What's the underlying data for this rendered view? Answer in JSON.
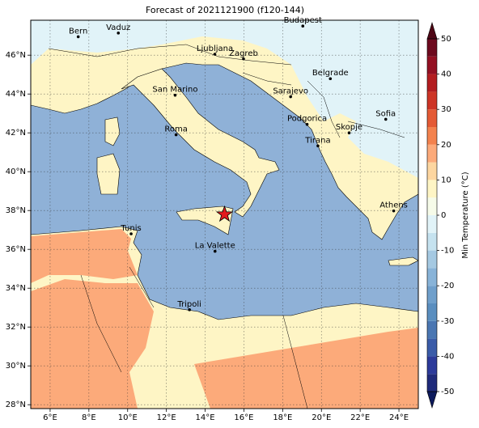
{
  "title": "Forecast of 2021121900 (f120-144)",
  "map": {
    "xlim": [
      5,
      25
    ],
    "ylim": [
      27.8,
      47.8
    ],
    "grid": true,
    "xticks": [
      {
        "value": 6,
        "label": "6°E"
      },
      {
        "value": 8,
        "label": "8°E"
      },
      {
        "value": 10,
        "label": "10°E"
      },
      {
        "value": 12,
        "label": "12°E"
      },
      {
        "value": 14,
        "label": "14°E"
      },
      {
        "value": 16,
        "label": "16°E"
      },
      {
        "value": 18,
        "label": "18°E"
      },
      {
        "value": 20,
        "label": "20°E"
      },
      {
        "value": 22,
        "label": "22°E"
      },
      {
        "value": 24,
        "label": "24°E"
      }
    ],
    "yticks": [
      {
        "value": 28,
        "label": "28°N"
      },
      {
        "value": 30,
        "label": "30°N"
      },
      {
        "value": 32,
        "label": "32°N"
      },
      {
        "value": 34,
        "label": "34°N"
      },
      {
        "value": 36,
        "label": "36°N"
      },
      {
        "value": 38,
        "label": "38°N"
      },
      {
        "value": 40,
        "label": "40°N"
      },
      {
        "value": 42,
        "label": "42°N"
      },
      {
        "value": 44,
        "label": "44°N"
      },
      {
        "value": 46,
        "label": "46°N"
      }
    ],
    "cities": [
      {
        "name": "Bern",
        "lon": 7.45,
        "lat": 46.95
      },
      {
        "name": "Vaduz",
        "lon": 9.52,
        "lat": 47.14
      },
      {
        "name": "Budapest",
        "lon": 19.04,
        "lat": 47.5
      },
      {
        "name": "Ljubljana",
        "lon": 14.5,
        "lat": 46.05
      },
      {
        "name": "Zagreb",
        "lon": 15.98,
        "lat": 45.81
      },
      {
        "name": "Belgrade",
        "lon": 20.46,
        "lat": 44.79
      },
      {
        "name": "San Marino",
        "lon": 12.45,
        "lat": 43.94
      },
      {
        "name": "Sarajevo",
        "lon": 18.41,
        "lat": 43.86
      },
      {
        "name": "Sofia",
        "lon": 23.32,
        "lat": 42.7
      },
      {
        "name": "Roma",
        "lon": 12.5,
        "lat": 41.9
      },
      {
        "name": "Podgorica",
        "lon": 19.26,
        "lat": 42.44
      },
      {
        "name": "Skopje",
        "lon": 21.43,
        "lat": 42.0
      },
      {
        "name": "Tirana",
        "lon": 19.82,
        "lat": 41.33
      },
      {
        "name": "Athens",
        "lon": 23.73,
        "lat": 37.98
      },
      {
        "name": "Tunis",
        "lon": 10.18,
        "lat": 36.8
      },
      {
        "name": "La Valette",
        "lon": 14.51,
        "lat": 35.9
      },
      {
        "name": "Tripoli",
        "lon": 13.19,
        "lat": 32.89
      }
    ],
    "star": {
      "lon": 15.0,
      "lat": 37.8
    }
  },
  "colorbar": {
    "label": "Min Temperature (°C)",
    "clim": [
      -50,
      50
    ],
    "ticks": [
      -50,
      -40,
      -30,
      -20,
      -10,
      0,
      10,
      20,
      30,
      40,
      50
    ],
    "colors": [
      "#1f2a7a",
      "#2c3a9a",
      "#3a5ba8",
      "#4a76b2",
      "#5a8ebf",
      "#6f9fcb",
      "#88b3d8",
      "#a5c9e2",
      "#c5e2ef",
      "#e1f3f8",
      "#f6fbe9",
      "#fef5c5",
      "#fdd6a0",
      "#fcaa7a",
      "#f3824e",
      "#e45a35",
      "#cd3526",
      "#b31d20",
      "#931022",
      "#6d0a1e"
    ],
    "under": "#0d1a5c",
    "over": "#4e0615"
  }
}
